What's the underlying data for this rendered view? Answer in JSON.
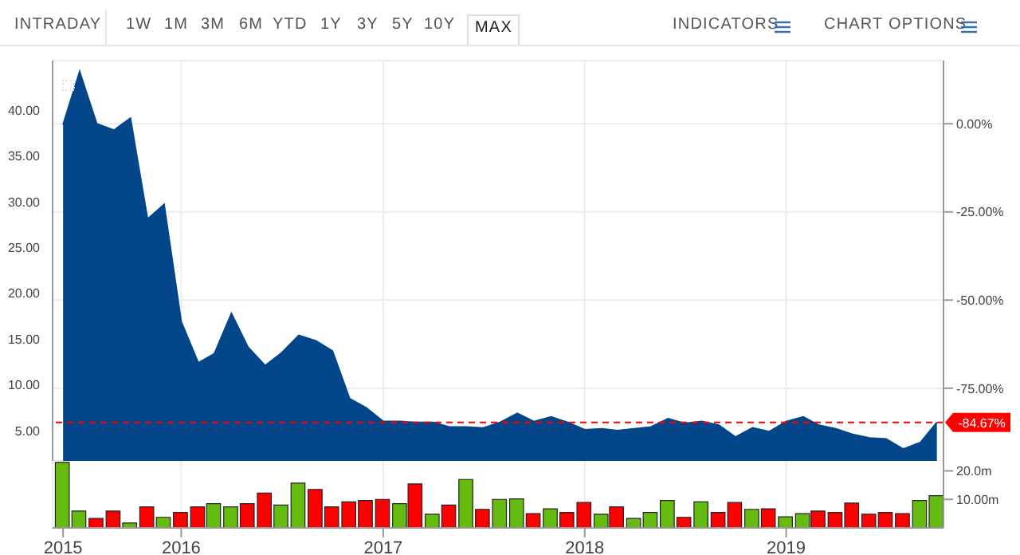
{
  "chart_data": [
    {
      "type": "area",
      "annotations": [
        "INTRADAY",
        "1W",
        "1M",
        "3M",
        "6M",
        "YTD",
        "1Y",
        "3Y",
        "5Y",
        "10Y",
        "MAX",
        "INDICATORS",
        "CHART OPTIONS"
      ],
      "x": [
        "2015-06",
        "2015-07",
        "2015-08",
        "2015-09",
        "2015-10",
        "2015-11",
        "2015-12",
        "2016-01",
        "2016-02",
        "2016-03",
        "2016-04",
        "2016-05",
        "2016-06",
        "2016-07",
        "2016-08",
        "2016-09",
        "2016-10",
        "2016-11",
        "2016-12",
        "2017-01",
        "2017-02",
        "2017-03",
        "2017-04",
        "2017-05",
        "2017-06",
        "2017-07",
        "2017-08",
        "2017-09",
        "2017-10",
        "2017-11",
        "2017-12",
        "2018-01",
        "2018-02",
        "2018-03",
        "2018-04",
        "2018-05",
        "2018-06",
        "2018-07",
        "2018-08",
        "2018-09",
        "2018-10",
        "2018-11",
        "2018-12",
        "2019-01",
        "2019-02",
        "2019-03",
        "2019-04",
        "2019-05",
        "2019-06",
        "2019-07",
        "2019-08",
        "2019-09",
        "2019-10"
      ],
      "series": [
        {
          "color": "#03468a",
          "values": [
            38.4,
            44.2,
            38.5,
            37.8,
            39.1,
            28.1,
            29.7,
            16.9,
            12.4,
            13.4,
            17.8,
            14.1,
            12.1,
            13.5,
            15.4,
            14.8,
            13.7,
            8.5,
            7.5,
            6.0,
            6.0,
            5.9,
            5.9,
            5.4,
            5.4,
            5.3,
            5.9,
            6.9,
            6.0,
            6.5,
            5.9,
            5.1,
            5.2,
            5.0,
            5.2,
            5.4,
            6.3,
            5.8,
            6.0,
            5.6,
            4.3,
            5.3,
            4.9,
            6.0,
            6.5,
            5.6,
            5.2,
            4.6,
            4.2,
            4.1,
            3.0,
            3.7,
            5.9
          ]
        }
      ],
      "xlim": [
        "2015-05-13",
        "2019-10-13"
      ],
      "ylim": [
        1.7,
        45.4
      ],
      "yticks": [
        {
          "value": 5,
          "label": "5.00"
        },
        {
          "value": 10,
          "label": "10.00"
        },
        {
          "value": 15,
          "label": "15.00"
        },
        {
          "value": 20,
          "label": "20.00"
        },
        {
          "value": 25,
          "label": "25.00"
        },
        {
          "value": 30,
          "label": "30.00"
        },
        {
          "value": 35,
          "label": "35.00"
        },
        {
          "value": 40,
          "label": "40.00"
        }
      ],
      "y2lim": [
        -95.6,
        17.9
      ],
      "y2ticks": [
        {
          "value": 0,
          "label": "0.00%"
        },
        {
          "value": -25,
          "label": "-25.00%"
        },
        {
          "value": -50,
          "label": "-50.00%"
        },
        {
          "value": -75,
          "label": "-75.00%"
        }
      ],
      "xticks": [
        {
          "value": "2016-01",
          "label": null
        },
        {
          "value": "2017-01",
          "label": null
        },
        {
          "value": "2018-01",
          "label": null
        },
        {
          "value": "2019-01",
          "label": null
        }
      ],
      "ref_lines": [
        {
          "axis": "y2",
          "value": -84.67,
          "label": "-84.67%",
          "color": "#ff0000",
          "line_style": "dashed"
        }
      ],
      "grid": true,
      "tick_labels": "y"
    },
    {
      "type": "bar",
      "x": [
        "2015-06",
        "2015-07",
        "2015-08",
        "2015-09",
        "2015-10",
        "2015-11",
        "2015-12",
        "2016-01",
        "2016-02",
        "2016-03",
        "2016-04",
        "2016-05",
        "2016-06",
        "2016-07",
        "2016-08",
        "2016-09",
        "2016-10",
        "2016-11",
        "2016-12",
        "2017-01",
        "2017-02",
        "2017-03",
        "2017-04",
        "2017-05",
        "2017-06",
        "2017-07",
        "2017-08",
        "2017-09",
        "2017-10",
        "2017-11",
        "2017-12",
        "2018-01",
        "2018-02",
        "2018-03",
        "2018-04",
        "2018-05",
        "2018-06",
        "2018-07",
        "2018-08",
        "2018-09",
        "2018-10",
        "2018-11",
        "2018-12",
        "2019-01",
        "2019-02",
        "2019-03",
        "2019-04",
        "2019-05",
        "2019-06",
        "2019-07",
        "2019-08",
        "2019-09",
        "2019-10"
      ],
      "values": [
        23.0,
        5.9,
        3.3,
        5.9,
        1.7,
        7.4,
        3.7,
        5.4,
        7.4,
        8.5,
        7.4,
        8.5,
        12.2,
        8.0,
        15.7,
        13.5,
        7.4,
        9.1,
        9.6,
        10.0,
        8.5,
        15.4,
        4.8,
        8.0,
        17.0,
        6.5,
        10.0,
        10.2,
        5.0,
        6.7,
        5.4,
        8.9,
        4.8,
        7.4,
        3.3,
        5.4,
        9.6,
        3.7,
        9.1,
        5.4,
        8.9,
        6.5,
        6.7,
        3.9,
        5.0,
        5.9,
        5.4,
        8.7,
        4.8,
        5.4,
        5.0,
        9.6,
        11.3
      ],
      "colors": [
        "#66bb11",
        "#66bb11",
        "#ff0000",
        "#ff0000",
        "#66bb11",
        "#ff0000",
        "#66bb11",
        "#ff0000",
        "#ff0000",
        "#66bb11",
        "#66bb11",
        "#ff0000",
        "#ff0000",
        "#66bb11",
        "#66bb11",
        "#ff0000",
        "#ff0000",
        "#ff0000",
        "#ff0000",
        "#ff0000",
        "#66bb11",
        "#ff0000",
        "#66bb11",
        "#ff0000",
        "#66bb11",
        "#ff0000",
        "#66bb11",
        "#66bb11",
        "#ff0000",
        "#66bb11",
        "#ff0000",
        "#ff0000",
        "#66bb11",
        "#ff0000",
        "#66bb11",
        "#66bb11",
        "#66bb11",
        "#ff0000",
        "#66bb11",
        "#ff0000",
        "#ff0000",
        "#66bb11",
        "#ff0000",
        "#66bb11",
        "#66bb11",
        "#ff0000",
        "#ff0000",
        "#ff0000",
        "#ff0000",
        "#ff0000",
        "#ff0000",
        "#66bb11",
        "#66bb11"
      ],
      "xlim": [
        "2015-05-13",
        "2019-10-13"
      ],
      "xticks": [
        {
          "value": "2015-06",
          "label": "2015"
        },
        {
          "value": "2016-01",
          "label": "2016"
        },
        {
          "value": "2017-01",
          "label": "2017"
        },
        {
          "value": "2018-01",
          "label": "2018"
        },
        {
          "value": "2019-01",
          "label": "2019"
        }
      ],
      "ylim": [
        0,
        23.5
      ],
      "yticks": [
        {
          "value": 10,
          "label": "10.00m"
        },
        {
          "value": 20,
          "label": "20.0m"
        }
      ],
      "grid": "x"
    }
  ]
}
